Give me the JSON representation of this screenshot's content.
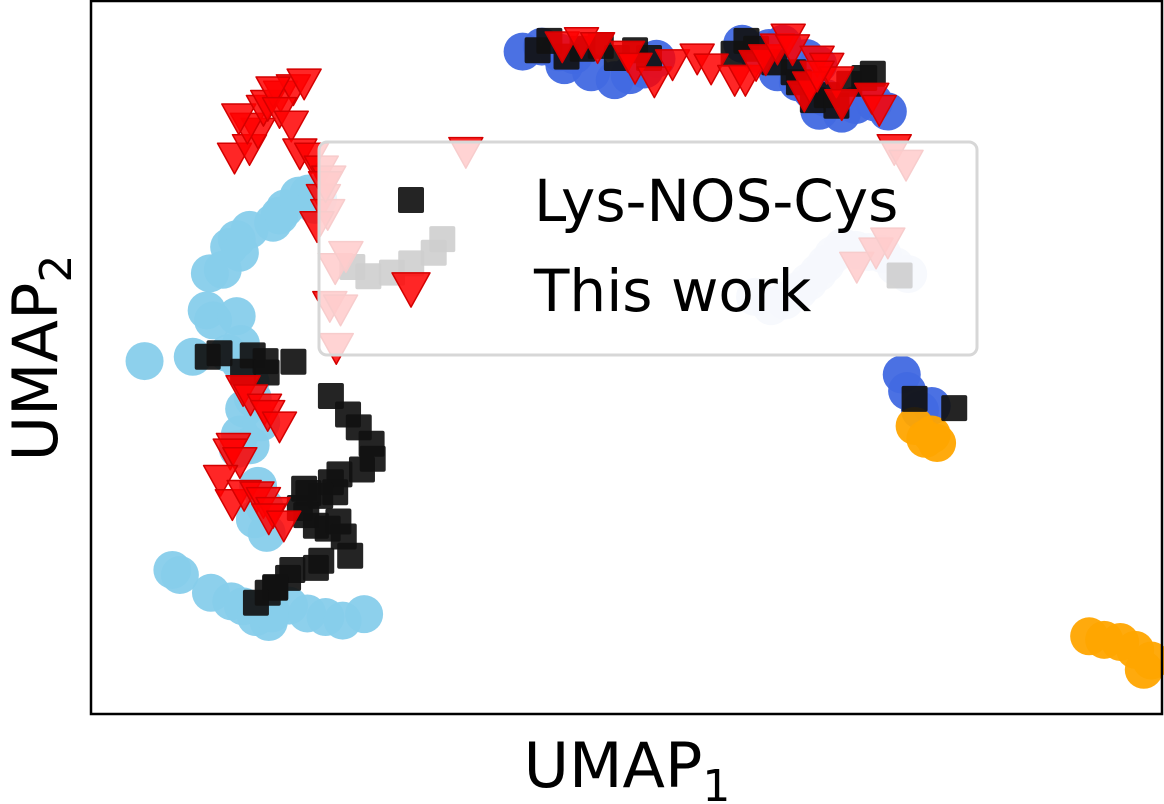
{
  "chart_data": {
    "type": "scatter",
    "title": "",
    "xlabel": {
      "base": "UMAP",
      "sub": "1"
    },
    "ylabel": {
      "base": "UMAP",
      "sub": "2"
    },
    "xlim": [
      0,
      100
    ],
    "ylim": [
      0,
      100
    ],
    "grid": false,
    "ticks": false,
    "legend": {
      "position": "top-center"
    },
    "colors": {
      "light_blue": "#87CEEB",
      "royal_blue": "#4169E1",
      "lavender": "#D2DCF3",
      "orange": "#FFA500",
      "black": "#111111",
      "red": "#FF0000"
    },
    "series": [
      {
        "role": "background-light-blue",
        "color": "#87CEEB",
        "marker": "circle",
        "x": [
          21.2,
          20.3,
          19.4,
          20.9,
          18.1,
          17.6,
          17.0,
          14.8,
          13.6,
          12.9,
          13.9,
          12.3,
          11.1,
          10.8,
          11.4,
          13.6,
          14.0,
          12.8,
          13.9,
          14.9,
          15.1,
          14.3,
          13.7,
          14.9,
          15.6,
          16.2,
          15.3,
          16.4,
          5.0,
          9.5,
          7.6,
          8.3,
          11.2,
          13.1,
          14.2,
          15.4,
          16.6,
          16.9,
          18.5,
          20.2,
          21.9,
          23.5,
          25.5,
          13.9,
          15.9
        ],
        "y": [
          72.3,
          73.0,
          72.7,
          71.4,
          70.9,
          69.9,
          68.9,
          67.9,
          66.6,
          65.5,
          64.7,
          62.3,
          61.8,
          56.6,
          55.2,
          55.8,
          51.9,
          50.6,
          49.3,
          46.6,
          44.3,
          42.8,
          37.2,
          37.7,
          32.0,
          29.1,
          27.3,
          25.4,
          49.5,
          50.1,
          20.2,
          19.5,
          17.0,
          15.8,
          15.1,
          13.6,
          12.9,
          14.1,
          15.2,
          14.1,
          13.6,
          13.1,
          14.0,
          39.2,
          40.9
        ]
      },
      {
        "role": "background-royal-blue",
        "color": "#4169E1",
        "marker": "circle",
        "x": [
          40.3,
          42.1,
          43.7,
          45.1,
          44.2,
          46.7,
          48.9,
          50.3,
          51.7,
          52.8,
          62.3,
          63.3,
          64.6,
          66.8,
          67.9,
          64.1,
          66.0,
          67.3,
          68.6,
          68.0,
          70.1,
          71.4,
          73.1,
          74.4,
          75.7,
          76.2,
          78.5,
          77.4,
          60.8
        ],
        "y": [
          92.9,
          93.6,
          92.8,
          92.4,
          91.0,
          90.0,
          88.9,
          89.6,
          90.4,
          91.9,
          92.6,
          93.4,
          94.0,
          92.0,
          91.1,
          90.0,
          88.6,
          87.4,
          86.4,
          84.6,
          84.2,
          85.4,
          85.8,
          84.5,
          47.6,
          45.3,
          43.2,
          42.6,
          94.0
        ]
      },
      {
        "role": "background-lavender",
        "color": "#D2DCF3",
        "marker": "circle",
        "x": [
          62.0,
          63.5,
          64.8,
          66.1,
          67.0,
          67.9,
          68.6,
          69.3,
          70.2,
          71.4,
          72.6,
          73.9,
          75.1,
          76.3
        ],
        "y": [
          58.5,
          57.2,
          58.0,
          59.4,
          60.6,
          61.9,
          63.1,
          64.4,
          65.5,
          65.1,
          64.8,
          64.5,
          62.8,
          61.7
        ]
      },
      {
        "role": "background-orange",
        "color": "#FFA500",
        "marker": "circle",
        "x": [
          76.9,
          78.5,
          79.0,
          77.9,
          93.2,
          94.6,
          96.1,
          97.5,
          99.0,
          98.3
        ],
        "y": [
          40.4,
          39.2,
          38.0,
          38.6,
          10.9,
          10.4,
          10.1,
          9.0,
          7.5,
          6.2
        ]
      },
      {
        "name": "Lys-NOS-Cys",
        "color": "#111111",
        "marker": "square",
        "x": [
          10.9,
          12.0,
          14.2,
          15.1,
          16.3,
          16.4,
          18.9,
          22.4,
          24.0,
          25.0,
          26.2,
          26.3,
          25.3,
          23.2,
          22.4,
          22.8,
          21.4,
          19.9,
          20.3,
          19.5,
          20.1,
          21.0,
          22.1,
          23.1,
          23.6,
          24.2,
          21.5,
          21.0,
          18.8,
          18.4,
          17.2,
          16.5,
          17.2,
          15.4,
          24.4,
          25.9,
          28.1,
          29.9,
          32.0,
          32.8,
          41.7,
          42.8,
          44.4,
          45.9,
          47.6,
          49.1,
          50.8,
          52.1,
          60.0,
          61.2,
          62.1,
          63.8,
          65.6,
          66.1,
          68.7,
          67.4,
          69.6,
          70.8,
          72.2,
          73.0,
          75.5,
          76.9,
          80.6
        ],
        "y": [
          50.1,
          50.6,
          48.0,
          50.3,
          49.5,
          47.9,
          49.4,
          44.6,
          42.0,
          40.2,
          37.9,
          35.8,
          34.3,
          33.6,
          32.5,
          31.1,
          30.6,
          31.6,
          31.0,
          28.9,
          27.9,
          26.4,
          26.0,
          27.0,
          24.9,
          22.2,
          21.5,
          20.5,
          20.2,
          19.1,
          17.7,
          17.0,
          17.8,
          15.6,
          62.7,
          61.4,
          61.9,
          63.2,
          64.7,
          66.6,
          93.1,
          94.4,
          92.2,
          93.3,
          93.7,
          92.0,
          93.1,
          92.0,
          92.6,
          94.4,
          93.3,
          91.4,
          90.0,
          88.6,
          86.8,
          86.1,
          85.3,
          88.4,
          89.2,
          89.8,
          61.5,
          44.2,
          42.9
        ]
      },
      {
        "name": "This work",
        "color": "#FF0000",
        "marker": "triangle-down",
        "x": [
          13.4,
          14.8,
          15.6,
          14.6,
          13.8,
          16.1,
          16.5,
          17.7,
          18.9,
          19.9,
          17.0,
          17.6,
          18.7,
          19.5,
          20.6,
          21.5,
          22.2,
          21.7,
          22.1,
          21.1,
          22.8,
          22.3,
          23.3,
          22.9,
          14.2,
          14.9,
          16.2,
          16.5,
          17.6,
          13.3,
          13.0,
          13.9,
          12.1,
          13.2,
          14.3,
          15.5,
          16.1,
          17.0,
          16.6,
          18.0,
          21.9,
          23.8,
          35.0,
          44.0,
          45.8,
          47.3,
          50.1,
          50.8,
          52.6,
          54.3,
          56.6,
          57.9,
          60.1,
          61.1,
          62.1,
          63.0,
          64.1,
          65.1,
          65.5,
          67.8,
          68.7,
          69.6,
          70.1,
          66.6,
          67.1,
          67.8,
          72.9,
          73.6,
          75.0,
          76.1,
          71.5,
          73.3,
          74.4
        ],
        "y": [
          77.9,
          79.1,
          81.4,
          82.1,
          83.4,
          84.6,
          85.3,
          86.6,
          87.5,
          88.3,
          87.2,
          84.3,
          82.4,
          78.5,
          77.9,
          76.1,
          74.7,
          72.1,
          70.0,
          68.3,
          62.4,
          57.1,
          56.6,
          51.2,
          45.3,
          44.0,
          42.7,
          41.8,
          40.2,
          37.2,
          36.4,
          35.2,
          32.7,
          29.3,
          30.6,
          30.4,
          29.6,
          28.2,
          27.3,
          26.3,
          73.9,
          64.1,
          78.7,
          93.5,
          94.1,
          93.4,
          92.2,
          90.5,
          88.6,
          91.0,
          91.8,
          90.4,
          88.8,
          88.8,
          90.9,
          91.7,
          93.2,
          94.6,
          93.1,
          91.5,
          90.5,
          88.6,
          85.4,
          86.6,
          87.9,
          89.4,
          86.3,
          84.6,
          79.1,
          76.9,
          62.6,
          64.6,
          66.0
        ]
      }
    ],
    "legend_entries": [
      {
        "label": "Lys-NOS-Cys",
        "marker": "square",
        "color": "#111111"
      },
      {
        "label": "This work",
        "marker": "triangle-down",
        "color": "#FF0000"
      }
    ]
  }
}
